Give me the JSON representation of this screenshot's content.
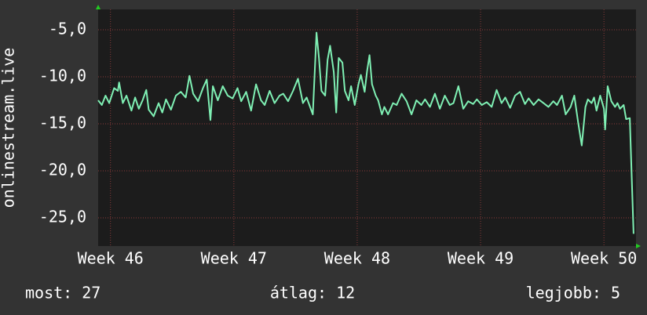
{
  "chart_data": {
    "type": "line",
    "y_label": "onlinestream.live",
    "x": [
      45.9,
      45.93,
      45.96,
      45.99,
      46.03,
      46.06,
      46.07,
      46.1,
      46.13,
      46.17,
      46.2,
      46.23,
      46.26,
      46.29,
      46.31,
      46.35,
      46.39,
      46.42,
      46.45,
      46.49,
      46.53,
      46.57,
      46.61,
      46.64,
      46.67,
      46.71,
      46.75,
      46.78,
      46.81,
      46.83,
      46.87,
      46.91,
      46.95,
      46.99,
      47.03,
      47.06,
      47.1,
      47.14,
      47.18,
      47.22,
      47.25,
      47.29,
      47.33,
      47.37,
      47.4,
      47.44,
      47.48,
      47.52,
      47.56,
      47.59,
      47.64,
      47.67,
      47.69,
      47.71,
      47.74,
      47.76,
      47.78,
      47.81,
      47.83,
      47.85,
      47.88,
      47.9,
      47.93,
      47.95,
      47.98,
      48.01,
      48.03,
      48.06,
      48.08,
      48.1,
      48.12,
      48.15,
      48.17,
      48.2,
      48.22,
      48.25,
      48.29,
      48.32,
      48.36,
      48.4,
      48.44,
      48.48,
      48.52,
      48.55,
      48.59,
      48.63,
      48.67,
      48.71,
      48.75,
      48.78,
      48.82,
      48.86,
      48.9,
      48.94,
      48.97,
      49.01,
      49.05,
      49.09,
      49.13,
      49.17,
      49.2,
      49.24,
      49.28,
      49.32,
      49.36,
      49.39,
      49.43,
      49.47,
      49.51,
      49.55,
      49.59,
      49.62,
      49.66,
      49.69,
      49.73,
      49.76,
      49.79,
      49.82,
      49.85,
      49.87,
      49.9,
      49.92,
      49.94,
      49.97,
      50.0,
      50.01,
      50.03,
      50.06,
      50.09,
      50.11,
      50.13,
      50.16,
      50.18,
      50.21,
      50.24
    ],
    "series": [
      {
        "name": "onlinestream.live",
        "color": "#7ff0b4",
        "values": [
          -12.5,
          -13.0,
          -12.0,
          -12.8,
          -11.2,
          -11.5,
          -10.6,
          -12.8,
          -12.0,
          -13.6,
          -12.2,
          -13.4,
          -12.5,
          -11.4,
          -13.5,
          -14.2,
          -12.8,
          -13.8,
          -12.4,
          -13.5,
          -12.0,
          -11.6,
          -12.2,
          -9.9,
          -11.8,
          -12.6,
          -11.2,
          -10.3,
          -14.6,
          -11.0,
          -12.5,
          -11.0,
          -12.0,
          -12.3,
          -11.2,
          -12.6,
          -11.6,
          -13.6,
          -10.8,
          -12.5,
          -13.0,
          -11.5,
          -12.8,
          -12.0,
          -11.8,
          -12.6,
          -11.5,
          -10.2,
          -12.8,
          -12.2,
          -14.0,
          -5.3,
          -8.0,
          -11.5,
          -12.0,
          -8.2,
          -6.7,
          -9.5,
          -13.8,
          -8.0,
          -8.5,
          -11.5,
          -12.5,
          -11.0,
          -13.0,
          -10.8,
          -9.8,
          -11.6,
          -9.4,
          -7.7,
          -10.8,
          -12.0,
          -12.5,
          -14.0,
          -13.2,
          -14.0,
          -12.8,
          -13.0,
          -11.8,
          -12.6,
          -14.0,
          -12.5,
          -13.0,
          -12.4,
          -13.2,
          -11.8,
          -13.4,
          -12.0,
          -13.0,
          -12.8,
          -11.0,
          -13.4,
          -12.6,
          -12.9,
          -12.4,
          -13.0,
          -12.7,
          -13.2,
          -11.4,
          -12.8,
          -12.2,
          -13.3,
          -12.0,
          -11.6,
          -12.9,
          -12.3,
          -13.0,
          -12.4,
          -12.8,
          -13.2,
          -12.6,
          -13.0,
          -12.0,
          -14.0,
          -13.2,
          -12.0,
          -14.8,
          -17.3,
          -13.2,
          -12.4,
          -12.8,
          -12.2,
          -13.6,
          -12.0,
          -13.4,
          -15.6,
          -11.0,
          -12.6,
          -13.2,
          -12.8,
          -13.4,
          -13.0,
          -14.5,
          -14.4,
          -26.7
        ]
      }
    ],
    "xlim": [
      45.9,
      50.26
    ],
    "xticks": [
      {
        "value": 46,
        "label": "Week 46"
      },
      {
        "value": 47,
        "label": "Week 47"
      },
      {
        "value": 48,
        "label": "Week 48"
      },
      {
        "value": 49,
        "label": "Week 49"
      },
      {
        "value": 50,
        "label": "Week 50"
      }
    ],
    "ylim": [
      -28,
      -2.83
    ],
    "yticks": [
      {
        "value": -25,
        "label": "-25,0"
      },
      {
        "value": -20,
        "label": "-20,0"
      },
      {
        "value": -15,
        "label": "-15,0"
      },
      {
        "value": -10,
        "label": "-10,0"
      },
      {
        "value": -5,
        "label": "-5,0"
      }
    ],
    "grid": true,
    "footer": {
      "current": "most: 27",
      "average": "átlag: 12",
      "best": "legjobb: 5"
    }
  }
}
